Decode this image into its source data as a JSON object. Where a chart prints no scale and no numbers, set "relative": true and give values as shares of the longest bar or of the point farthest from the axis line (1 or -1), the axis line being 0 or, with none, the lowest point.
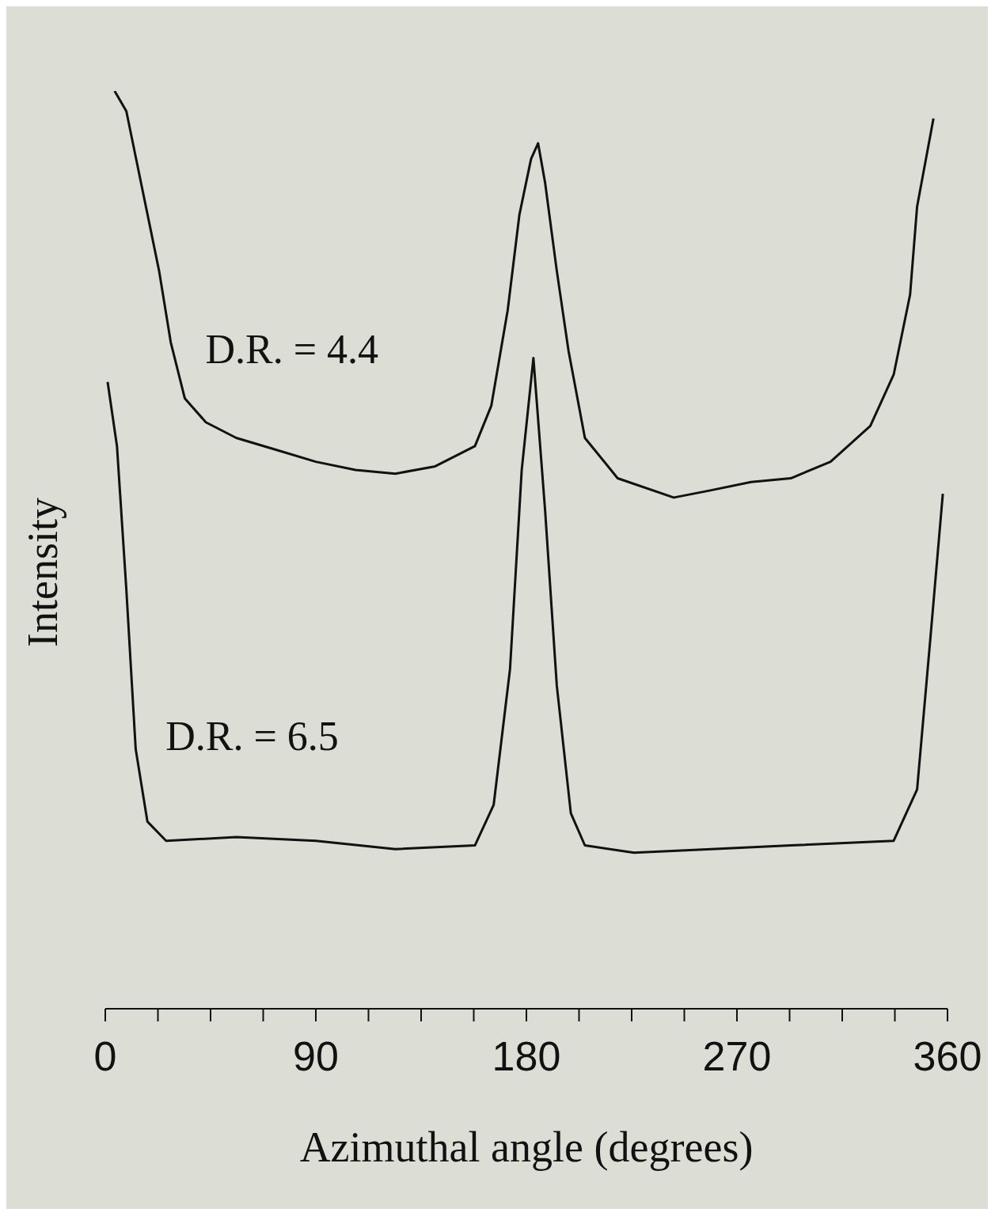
{
  "chart_data": {
    "type": "line",
    "relative": true,
    "xlabel": "Azimuthal angle (degrees)",
    "ylabel": "Intensity",
    "xlim": [
      0,
      360
    ],
    "xticks": [
      0,
      {
        "value": 22.5,
        "label": null
      },
      {
        "value": 45,
        "label": null
      },
      {
        "value": 67.5,
        "label": null
      },
      90,
      {
        "value": 112.5,
        "label": null
      },
      {
        "value": 135,
        "label": null
      },
      {
        "value": 157.5,
        "label": null
      },
      180,
      {
        "value": 202.5,
        "label": null
      },
      {
        "value": 225,
        "label": null
      },
      {
        "value": 247.5,
        "label": null
      },
      270,
      {
        "value": 292.5,
        "label": null
      },
      {
        "value": 315,
        "label": null
      },
      {
        "value": 337.5,
        "label": null
      },
      360
    ],
    "tick_labels": "x",
    "grid": false,
    "legend": false,
    "marker": "none",
    "line_style": "solid",
    "series": [
      {
        "name": "D.R. = 4.4",
        "color": "#111111",
        "x": [
          4,
          9,
          16,
          23,
          28,
          34,
          43,
          56,
          73,
          90,
          107,
          124,
          141,
          158,
          165,
          172,
          177,
          182,
          185,
          188,
          193,
          198,
          205,
          219,
          243,
          259,
          276,
          293,
          310,
          327,
          337,
          344,
          347,
          354
        ],
        "values": [
          1.0,
          0.978,
          0.891,
          0.804,
          0.726,
          0.665,
          0.639,
          0.622,
          0.609,
          0.596,
          0.587,
          0.583,
          0.591,
          0.613,
          0.657,
          0.761,
          0.865,
          0.926,
          0.943,
          0.9,
          0.804,
          0.717,
          0.622,
          0.578,
          0.557,
          0.565,
          0.574,
          0.578,
          0.596,
          0.635,
          0.691,
          0.778,
          0.874,
          0.97
        ]
      },
      {
        "name": "D.R. = 6.5",
        "color": "#111111",
        "x": [
          1,
          5,
          9,
          13,
          18,
          26,
          56,
          90,
          124,
          158,
          166,
          173,
          178,
          183,
          188,
          193,
          199,
          205,
          226,
          259,
          293,
          337,
          347,
          353,
          358
        ],
        "values": [
          0.683,
          0.613,
          0.457,
          0.283,
          0.204,
          0.183,
          0.187,
          0.183,
          0.174,
          0.178,
          0.222,
          0.37,
          0.587,
          0.709,
          0.543,
          0.352,
          0.213,
          0.178,
          0.17,
          0.174,
          0.178,
          0.183,
          0.239,
          0.413,
          0.561
        ]
      }
    ]
  }
}
